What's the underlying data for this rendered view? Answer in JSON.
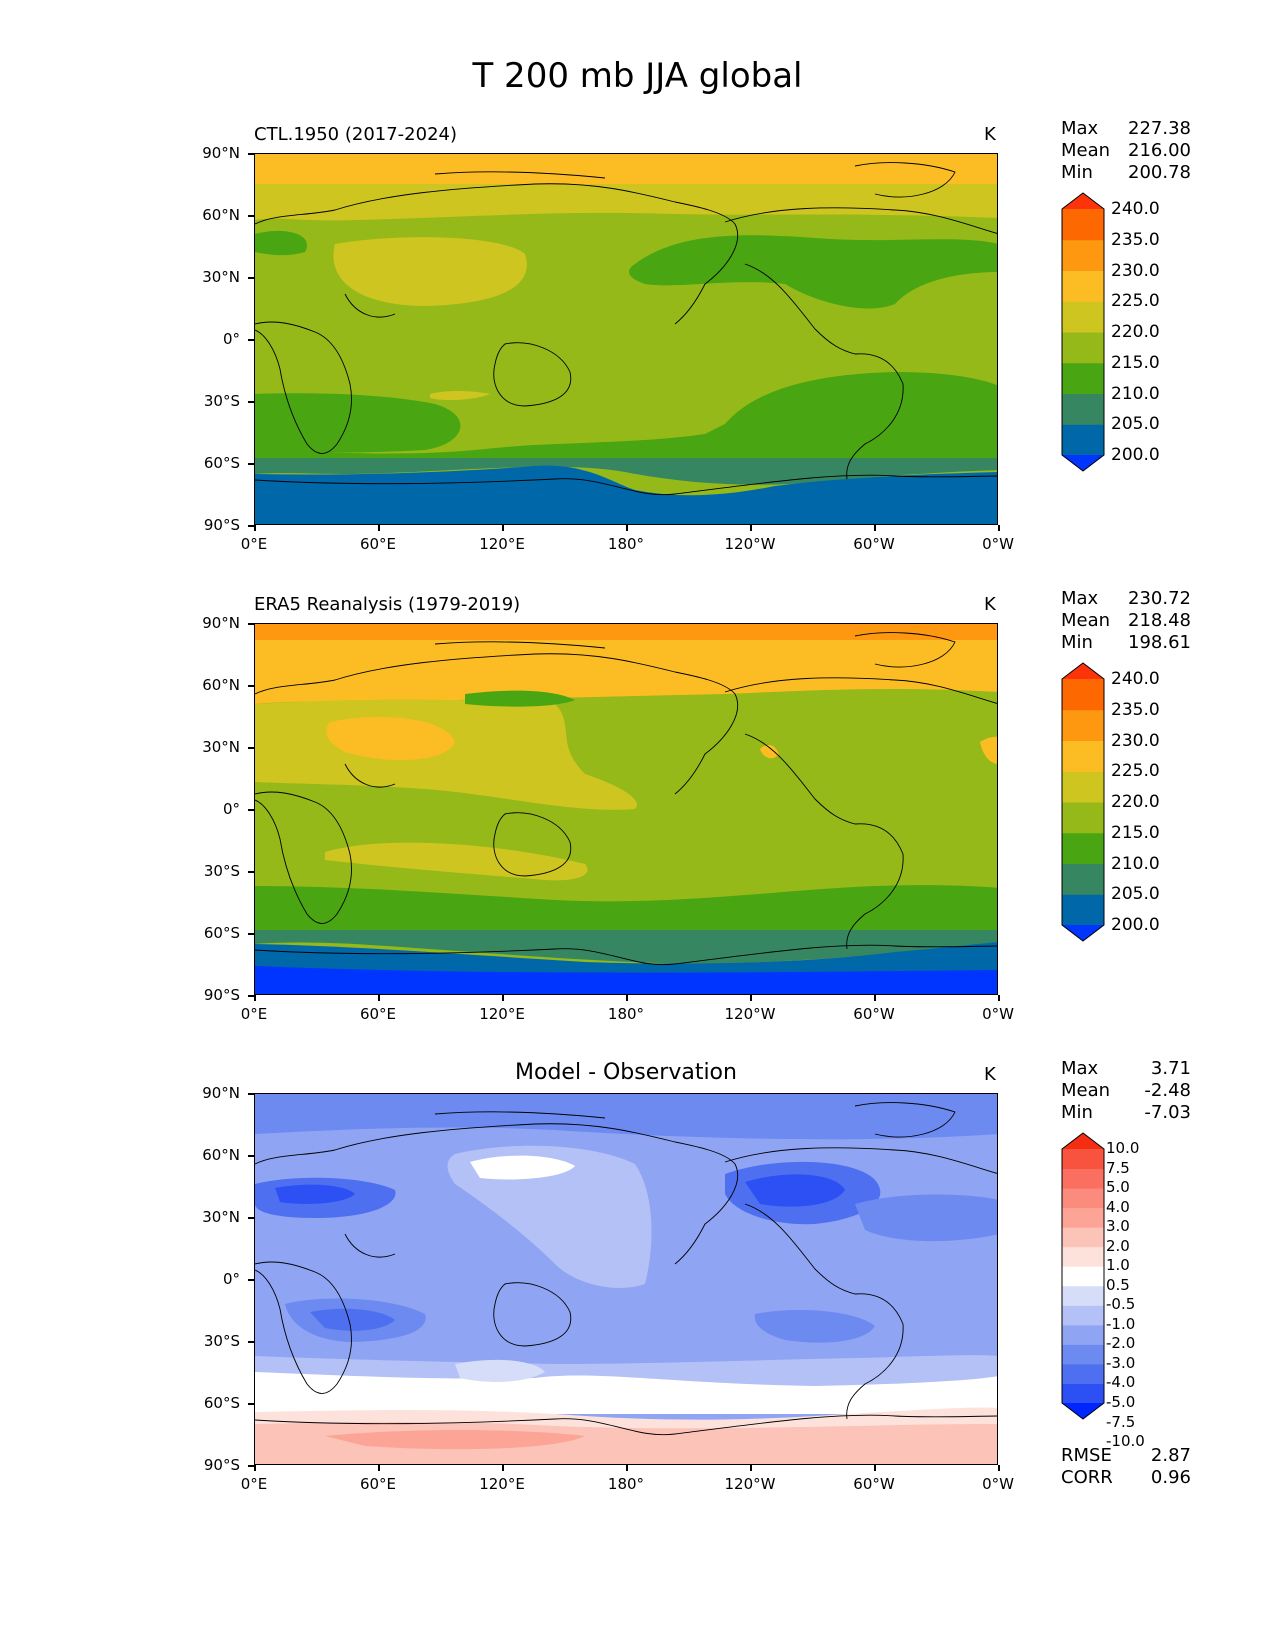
{
  "title": "T 200 mb JJA global",
  "lat_ticks": [
    "90°N",
    "60°N",
    "30°N",
    "0°",
    "30°S",
    "60°S",
    "90°S"
  ],
  "lon_ticks": [
    "0°E",
    "60°E",
    "120°E",
    "180°",
    "120°W",
    "60°W",
    "0°W"
  ],
  "panels": [
    {
      "title": "CTL.1950 (2017-2024)",
      "units": "K",
      "stats": {
        "max_label": "Max",
        "max": "227.38",
        "mean_label": "Mean",
        "mean": "216.00",
        "min_label": "Min",
        "min": "200.78"
      },
      "colorbar_labels": [
        "240.0",
        "235.0",
        "230.0",
        "225.0",
        "220.0",
        "215.0",
        "210.0",
        "205.0",
        "200.0"
      ]
    },
    {
      "title": "ERA5 Reanalysis (1979-2019)",
      "units": "K",
      "stats": {
        "max_label": "Max",
        "max": "230.72",
        "mean_label": "Mean",
        "mean": "218.48",
        "min_label": "Min",
        "min": "198.61"
      },
      "colorbar_labels": [
        "240.0",
        "235.0",
        "230.0",
        "225.0",
        "220.0",
        "215.0",
        "210.0",
        "205.0",
        "200.0"
      ]
    },
    {
      "title": "Model - Observation",
      "units": "K",
      "stats": {
        "max_label": "Max",
        "max": "3.71",
        "mean_label": "Mean",
        "mean": "-2.48",
        "min_label": "Min",
        "min": "-7.03"
      },
      "colorbar_labels": [
        "10.0",
        "7.5",
        "5.0",
        "4.0",
        "3.0",
        "2.0",
        "1.0",
        "0.5",
        "-0.5",
        "-1.0",
        "-2.0",
        "-3.0",
        "-4.0",
        "-5.0",
        "-7.5",
        "-10.0"
      ],
      "metrics": {
        "rmse_label": "RMSE",
        "rmse": "2.87",
        "corr_label": "CORR",
        "corr": "0.96"
      }
    }
  ],
  "colors": {
    "abs_levels": [
      "#0034ff",
      "#0068a8",
      "#368761",
      "#4aa512",
      "#95b919",
      "#cec521",
      "#fcbd24",
      "#fe9810",
      "#fd6800",
      "#fd3409"
    ],
    "diff_levels": [
      "#0026ff",
      "#2d50f4",
      "#4e70f0",
      "#6d8af1",
      "#8fa4f3",
      "#b3c1f6",
      "#d5ddf9",
      "#ffffff",
      "#fde2dc",
      "#fcc3b9",
      "#fca596",
      "#fb8b7d",
      "#fa6f60",
      "#f8533f",
      "#f52d12"
    ]
  }
}
